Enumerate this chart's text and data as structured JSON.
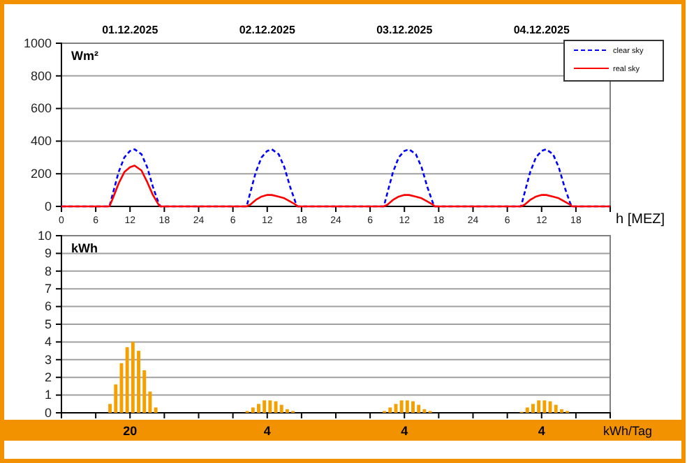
{
  "chart_data": [
    {
      "type": "line",
      "xlabel": "h [MEZ]",
      "ylabel": "Wm²",
      "xlim": [
        "2025-12-01T00:00",
        "2025-12-05T00:00"
      ],
      "ylim": [
        0,
        1000
      ],
      "xticks": [
        {
          "value": "2025-12-01T00:00",
          "label": "0"
        },
        {
          "value": "2025-12-01T06:00",
          "label": "6"
        },
        {
          "value": "2025-12-01T12:00",
          "label": "12"
        },
        {
          "value": "2025-12-01T18:00",
          "label": "18"
        },
        {
          "value": "2025-12-02T00:00",
          "label": "24"
        },
        {
          "value": "2025-12-02T06:00",
          "label": "6"
        },
        {
          "value": "2025-12-02T12:00",
          "label": "12"
        },
        {
          "value": "2025-12-02T18:00",
          "label": "18"
        },
        {
          "value": "2025-12-03T00:00",
          "label": "24"
        },
        {
          "value": "2025-12-03T06:00",
          "label": "6"
        },
        {
          "value": "2025-12-03T12:00",
          "label": "12"
        },
        {
          "value": "2025-12-03T18:00",
          "label": "18"
        },
        {
          "value": "2025-12-04T00:00",
          "label": "24"
        },
        {
          "value": "2025-12-04T06:00",
          "label": "6"
        },
        {
          "value": "2025-12-04T12:00",
          "label": "12"
        },
        {
          "value": "2025-12-04T18:00",
          "label": "18"
        }
      ],
      "yticks": [
        0,
        200,
        400,
        600,
        800,
        1000
      ],
      "x2lim": [
        "2025-12-01T00:00",
        "2025-12-05T00:00"
      ],
      "x2ticks": [
        {
          "value": "2025-12-01T12:00",
          "label": "01.12.2025"
        },
        {
          "value": "2025-12-02T12:00",
          "label": "02.12.2025"
        },
        {
          "value": "2025-12-03T12:00",
          "label": "03.12.2025"
        },
        {
          "value": "2025-12-04T12:00",
          "label": "04.12.2025"
        }
      ],
      "grid": "y",
      "legend": "top right",
      "series": [
        {
          "name": "clear sky",
          "color": "#0000ff",
          "line_style": "dashed",
          "x": [
            "2025-12-01T00:00",
            "2025-12-01T08:24",
            "2025-12-01T09:00",
            "2025-12-01T10:00",
            "2025-12-01T11:00",
            "2025-12-01T12:00",
            "2025-12-01T12:48",
            "2025-12-01T14:00",
            "2025-12-01T15:00",
            "2025-12-01T16:00",
            "2025-12-01T17:00",
            "2025-12-01T17:18",
            "2025-12-02T08:24",
            "2025-12-02T09:00",
            "2025-12-02T10:00",
            "2025-12-02T11:00",
            "2025-12-02T12:00",
            "2025-12-02T12:48",
            "2025-12-02T14:00",
            "2025-12-02T15:00",
            "2025-12-02T16:00",
            "2025-12-02T17:00",
            "2025-12-02T17:18",
            "2025-12-03T08:24",
            "2025-12-03T09:00",
            "2025-12-03T10:00",
            "2025-12-03T11:00",
            "2025-12-03T12:00",
            "2025-12-03T12:48",
            "2025-12-03T14:00",
            "2025-12-03T15:00",
            "2025-12-03T16:00",
            "2025-12-03T17:00",
            "2025-12-03T17:18",
            "2025-12-04T08:24",
            "2025-12-04T09:00",
            "2025-12-04T10:00",
            "2025-12-04T11:00",
            "2025-12-04T12:00",
            "2025-12-04T12:48",
            "2025-12-04T14:00",
            "2025-12-04T15:00",
            "2025-12-04T16:00",
            "2025-12-04T17:00",
            "2025-12-04T17:18",
            "2025-12-05T00:00"
          ],
          "values": [
            0,
            0,
            80,
            210,
            300,
            340,
            350,
            320,
            240,
            120,
            20,
            0,
            0,
            80,
            210,
            300,
            340,
            350,
            320,
            240,
            120,
            20,
            0,
            0,
            80,
            210,
            300,
            340,
            350,
            320,
            240,
            120,
            20,
            0,
            0,
            80,
            210,
            300,
            340,
            350,
            320,
            240,
            120,
            20,
            0,
            0
          ]
        },
        {
          "name": "real sky",
          "color": "#ff0000",
          "line_style": "solid",
          "x": [
            "2025-12-01T00:00",
            "2025-12-01T08:24",
            "2025-12-01T09:00",
            "2025-12-01T10:00",
            "2025-12-01T11:00",
            "2025-12-01T12:00",
            "2025-12-01T12:48",
            "2025-12-01T14:00",
            "2025-12-01T15:00",
            "2025-12-01T16:00",
            "2025-12-01T17:00",
            "2025-12-01T17:18",
            "2025-12-02T08:24",
            "2025-12-02T09:00",
            "2025-12-02T10:00",
            "2025-12-02T11:00",
            "2025-12-02T12:00",
            "2025-12-02T12:48",
            "2025-12-02T14:00",
            "2025-12-02T15:00",
            "2025-12-02T16:00",
            "2025-12-02T17:00",
            "2025-12-02T17:18",
            "2025-12-03T08:24",
            "2025-12-03T09:00",
            "2025-12-03T10:00",
            "2025-12-03T11:00",
            "2025-12-03T12:00",
            "2025-12-03T12:48",
            "2025-12-03T14:00",
            "2025-12-03T15:00",
            "2025-12-03T16:00",
            "2025-12-03T17:00",
            "2025-12-03T17:18",
            "2025-12-04T08:24",
            "2025-12-04T09:00",
            "2025-12-04T10:00",
            "2025-12-04T11:00",
            "2025-12-04T12:00",
            "2025-12-04T12:48",
            "2025-12-04T14:00",
            "2025-12-04T15:00",
            "2025-12-04T16:00",
            "2025-12-04T17:00",
            "2025-12-04T17:18",
            "2025-12-05T00:00"
          ],
          "values": [
            0,
            0,
            50,
            140,
            210,
            240,
            250,
            220,
            150,
            70,
            10,
            0,
            0,
            10,
            40,
            60,
            70,
            70,
            60,
            50,
            30,
            10,
            0,
            0,
            10,
            40,
            60,
            70,
            70,
            60,
            50,
            30,
            10,
            0,
            0,
            10,
            40,
            60,
            70,
            70,
            60,
            50,
            30,
            10,
            0,
            0
          ]
        }
      ]
    },
    {
      "type": "bar",
      "ylabel": "kWh",
      "xlim": [
        "2025-12-01T00:00",
        "2025-12-05T00:00"
      ],
      "ylim": [
        0,
        10
      ],
      "yticks": [
        0,
        1,
        2,
        3,
        4,
        5,
        6,
        7,
        8,
        9,
        10
      ],
      "xticks": [
        {
          "value": "2025-12-01T00:00",
          "label": null
        },
        {
          "value": "2025-12-01T06:00",
          "label": null
        },
        {
          "value": "2025-12-01T12:00",
          "label": null
        },
        {
          "value": "2025-12-01T18:00",
          "label": null
        },
        {
          "value": "2025-12-02T00:00",
          "label": null
        },
        {
          "value": "2025-12-02T06:00",
          "label": null
        },
        {
          "value": "2025-12-02T12:00",
          "label": null
        },
        {
          "value": "2025-12-02T18:00",
          "label": null
        },
        {
          "value": "2025-12-03T00:00",
          "label": null
        },
        {
          "value": "2025-12-03T06:00",
          "label": null
        },
        {
          "value": "2025-12-03T12:00",
          "label": null
        },
        {
          "value": "2025-12-03T18:00",
          "label": null
        },
        {
          "value": "2025-12-04T00:00",
          "label": null
        },
        {
          "value": "2025-12-04T06:00",
          "label": null
        },
        {
          "value": "2025-12-04T12:00",
          "label": null
        },
        {
          "value": "2025-12-04T18:00",
          "label": null
        },
        {
          "value": "2025-12-05T00:00",
          "label": null
        }
      ],
      "tick_labels": "y",
      "grid": "y",
      "color": "#f5a000",
      "x": [
        "2025-12-01T08:30",
        "2025-12-01T09:30",
        "2025-12-01T10:30",
        "2025-12-01T11:30",
        "2025-12-01T12:30",
        "2025-12-01T13:30",
        "2025-12-01T14:30",
        "2025-12-01T15:30",
        "2025-12-01T16:30",
        "2025-12-02T08:30",
        "2025-12-02T09:30",
        "2025-12-02T10:30",
        "2025-12-02T11:30",
        "2025-12-02T12:30",
        "2025-12-02T13:30",
        "2025-12-02T14:30",
        "2025-12-02T15:30",
        "2025-12-02T16:30",
        "2025-12-03T08:30",
        "2025-12-03T09:30",
        "2025-12-03T10:30",
        "2025-12-03T11:30",
        "2025-12-03T12:30",
        "2025-12-03T13:30",
        "2025-12-03T14:30",
        "2025-12-03T15:30",
        "2025-12-03T16:30",
        "2025-12-04T08:30",
        "2025-12-04T09:30",
        "2025-12-04T10:30",
        "2025-12-04T11:30",
        "2025-12-04T12:30",
        "2025-12-04T13:30",
        "2025-12-04T14:30",
        "2025-12-04T15:30",
        "2025-12-04T16:30"
      ],
      "values": [
        0.5,
        1.6,
        2.8,
        3.7,
        4.0,
        3.5,
        2.4,
        1.2,
        0.3,
        0.1,
        0.3,
        0.5,
        0.7,
        0.7,
        0.65,
        0.45,
        0.2,
        0.1,
        0.1,
        0.3,
        0.5,
        0.7,
        0.7,
        0.65,
        0.45,
        0.2,
        0.1,
        0.05,
        0.3,
        0.5,
        0.7,
        0.7,
        0.65,
        0.45,
        0.2,
        0.1
      ],
      "annotations": [
        "20",
        "4",
        "4",
        "4",
        "kWh/Tag"
      ]
    }
  ]
}
